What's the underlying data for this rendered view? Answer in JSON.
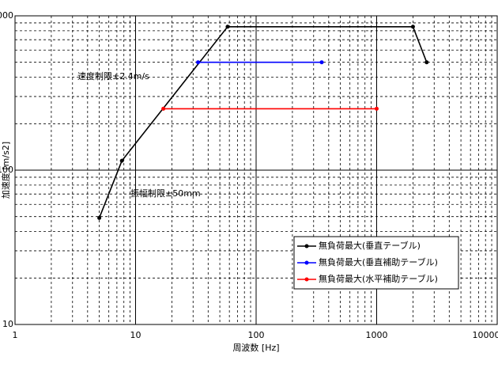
{
  "chart_data": {
    "type": "line",
    "xlabel": "周波数 [Hz]",
    "ylabel": "加速度 [m/s2]",
    "xscale": "log",
    "yscale": "log",
    "grid": true,
    "legend": "lower right",
    "xlim": [
      1,
      10000
    ],
    "ylim": [
      10,
      1000
    ],
    "xticks": [
      1,
      10,
      100,
      1000,
      10000
    ],
    "yticks": [
      10,
      100,
      1000
    ],
    "annotations": [
      "速度制限±2.4m/s",
      "振幅制限±50mm"
    ],
    "series": [
      {
        "name": "無負荷最大(垂直テーブル)",
        "color": "#000000",
        "x": [
          5,
          7.7,
          58,
          2000,
          2600
        ],
        "values": [
          49,
          115,
          850,
          850,
          500
        ]
      },
      {
        "name": "無負荷最大(垂直補助テーブル)",
        "color": "#0000ff",
        "x": [
          33,
          350
        ],
        "values": [
          500,
          500
        ]
      },
      {
        "name": "無負荷最大(水平補助テーブル)",
        "color": "#ff0000",
        "x": [
          17,
          1000
        ],
        "values": [
          250,
          250
        ]
      }
    ]
  }
}
